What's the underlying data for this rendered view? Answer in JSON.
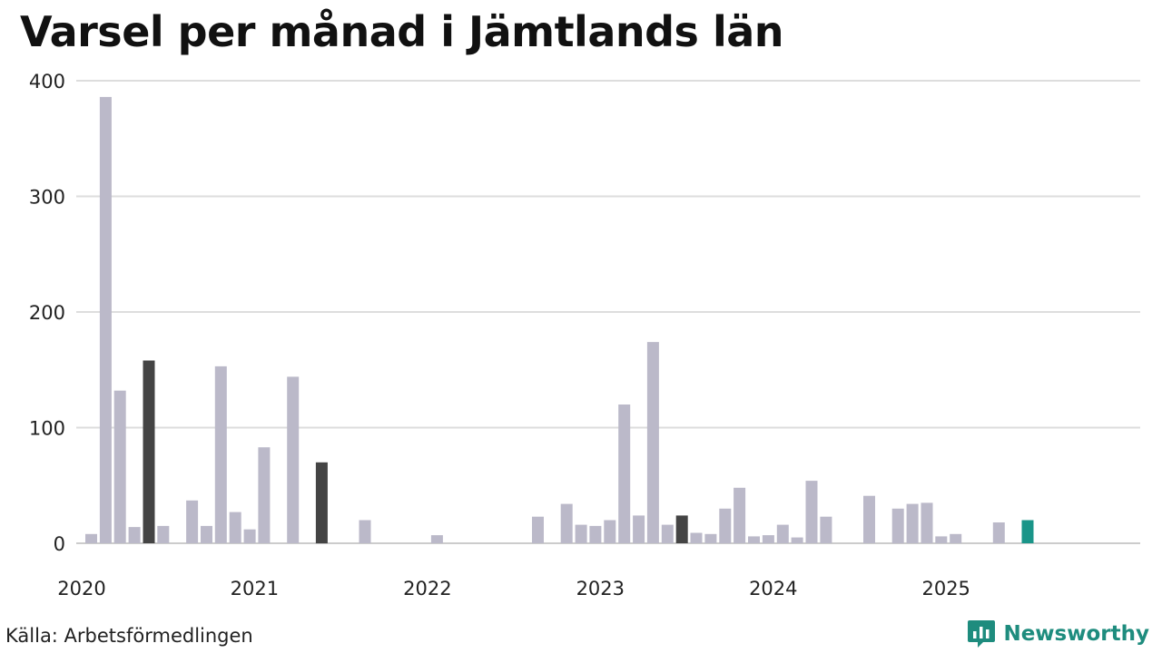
{
  "title": "Varsel per månad i Jämtlands län",
  "source": "Källa: Arbetsförmedlingen",
  "brand": {
    "name": "Newsworthy",
    "icon": "newsworthy-chart-logo-icon",
    "color": "#1e8c7e"
  },
  "colors": {
    "bar_default": "#bbb9c9",
    "bar_highlight": "#444444",
    "bar_current": "#1a9589",
    "grid": "#dddddd",
    "axis": "#cccccc"
  },
  "chart_data": {
    "type": "bar",
    "title": "Varsel per månad i Jämtlands län",
    "xlabel": "",
    "ylabel": "",
    "ylim": [
      0,
      400
    ],
    "yticks": [
      "0",
      "100",
      "200",
      "300",
      "400"
    ],
    "xticks": [
      "2020",
      "2021",
      "2022",
      "2023",
      "2024",
      "2025"
    ],
    "grid": true,
    "legend": false,
    "categories": [
      "2020-01",
      "2020-02",
      "2020-03",
      "2020-04",
      "2020-05",
      "2020-06",
      "2020-07",
      "2020-08",
      "2020-09",
      "2020-10",
      "2020-11",
      "2020-12",
      "2021-01",
      "2021-02",
      "2021-03",
      "2021-04",
      "2021-05",
      "2021-06",
      "2021-07",
      "2021-08",
      "2021-09",
      "2021-10",
      "2021-11",
      "2021-12",
      "2022-01",
      "2022-02",
      "2022-03",
      "2022-04",
      "2022-05",
      "2022-06",
      "2022-07",
      "2022-08",
      "2022-09",
      "2022-10",
      "2022-11",
      "2022-12",
      "2023-01",
      "2023-02",
      "2023-03",
      "2023-04",
      "2023-05",
      "2023-06",
      "2023-07",
      "2023-08",
      "2023-09",
      "2023-10",
      "2023-11",
      "2023-12",
      "2024-01",
      "2024-02",
      "2024-03",
      "2024-04",
      "2024-05",
      "2024-06",
      "2024-07",
      "2024-08",
      "2024-09",
      "2024-10",
      "2024-11",
      "2024-12",
      "2025-01",
      "2025-02",
      "2025-03",
      "2025-04",
      "2025-05",
      "2025-06"
    ],
    "values": [
      8,
      386,
      132,
      14,
      158,
      15,
      0,
      37,
      15,
      153,
      27,
      12,
      83,
      0,
      144,
      0,
      70,
      0,
      0,
      20,
      0,
      0,
      0,
      0,
      7,
      0,
      0,
      0,
      0,
      0,
      0,
      23,
      0,
      34,
      16,
      15,
      20,
      120,
      24,
      174,
      16,
      24,
      9,
      8,
      30,
      48,
      6,
      7,
      16,
      5,
      54,
      23,
      0,
      0,
      41,
      0,
      30,
      34,
      35,
      6,
      8,
      0,
      0,
      18,
      0,
      20
    ],
    "highlight_months": [
      "2020-05",
      "2021-05",
      "2023-06"
    ],
    "current_month": "2025-06"
  }
}
